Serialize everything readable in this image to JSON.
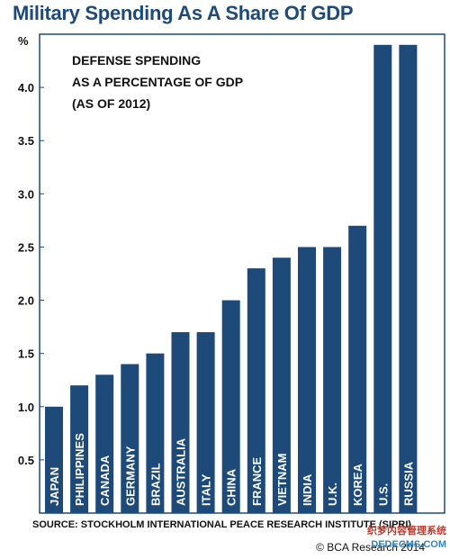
{
  "title": "Military Spending As A Share Of GDP",
  "chart_data": {
    "type": "bar",
    "title": "Military Spending As A Share Of GDP",
    "annotation_lines": [
      "DEFENSE SPENDING",
      "AS A PERCENTAGE OF GDP",
      "(AS OF 2012)"
    ],
    "ylabel": "%",
    "ylim": [
      0,
      4.5
    ],
    "yticks": [
      0.5,
      1.0,
      1.5,
      2.0,
      2.5,
      3.0,
      3.5,
      4.0
    ],
    "ytick_labels": [
      "0.5",
      "1.0",
      "1.5",
      "2.0",
      "2.5",
      "3.0",
      "3.5",
      "4.0"
    ],
    "categories": [
      "JAPAN",
      "PHILIPPINES",
      "CANADA",
      "GERMANY",
      "BRAZIL",
      "AUSTRALIA",
      "ITALY",
      "CHINA",
      "FRANCE",
      "VIETNAM",
      "INDIA",
      "U.K.",
      "KOREA",
      "U.S.",
      "RUSSIA"
    ],
    "values": [
      1.0,
      1.2,
      1.3,
      1.4,
      1.5,
      1.7,
      1.7,
      2.0,
      2.3,
      2.4,
      2.5,
      2.5,
      2.7,
      4.4,
      4.4
    ],
    "colors": {
      "bar": "#1d4a78",
      "frame": "#1d4a78"
    },
    "grid": false,
    "legend": "none"
  },
  "source": "SOURCE: STOCKHOLM INTERNATIONAL PEACE RESEARCH INSTITUTE (SIPRI)",
  "credit": "© BCA Research 2014",
  "watermark": {
    "line1": "织梦内容管理系统",
    "line2": "DEDECMS.COM"
  }
}
